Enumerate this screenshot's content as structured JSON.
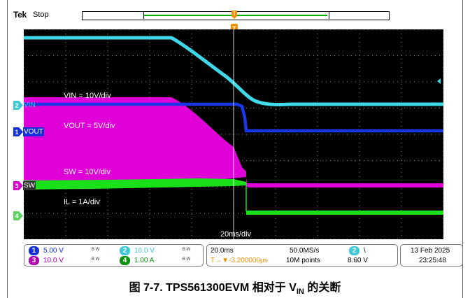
{
  "header": {
    "brand": "Tek",
    "acq_state": "Stop"
  },
  "trigger_marker": "T",
  "scope_labels": {
    "vin_scale": "VIN = 10V/div",
    "vout_scale": "VOUT = 5V/div",
    "sw_scale": "SW = 10V/div",
    "il_scale": "IL = 1A/div",
    "time_scale": "20ms/div"
  },
  "channel_markers": [
    {
      "num": "2",
      "name": "VIN",
      "color": "#3fc8d8"
    },
    {
      "num": "1",
      "name": "VOUT",
      "color": "#1530d8"
    },
    {
      "num": "3",
      "name": "SW",
      "color": "#d800d0"
    },
    {
      "num": "4",
      "name": "IL",
      "color": "#20d030"
    }
  ],
  "status_bar": {
    "ch1": {
      "num": "1",
      "scale": "5.00 V",
      "color": "#1530d8"
    },
    "ch2": {
      "num": "2",
      "scale": "10.0 V",
      "color": "#3fc8d8"
    },
    "ch3": {
      "num": "3",
      "scale": "10.0 V",
      "color": "#b000b0"
    },
    "ch4": {
      "num": "4",
      "scale": "1.00 A",
      "color": "#109010"
    },
    "bw_mark": "B W",
    "timebase": "20.0ms",
    "trig_pos": "T→▼-3.200000µs",
    "sample_rate": "50.0MS/s",
    "record_length": "10M points",
    "trig_source": "2",
    "trig_slope": "\\",
    "trig_level": "8.60 V",
    "date": "13 Feb  2025",
    "time": "23:25:48"
  },
  "caption": {
    "prefix": "图 7-7. TPS561300EVM 相对于 V",
    "sub": "IN",
    "suffix": " 的关断"
  }
}
